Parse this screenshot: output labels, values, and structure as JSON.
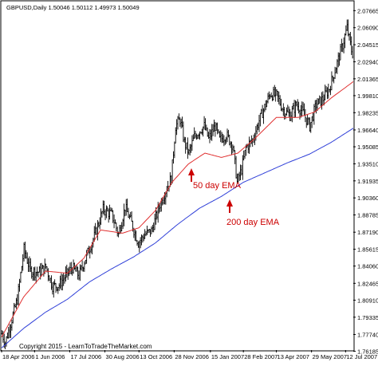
{
  "chart_data": {
    "type": "line",
    "title": "GBPUSD,Daily  1.50046 1.50112 1.49973 1.50049",
    "xlabel": "",
    "ylabel": "",
    "ylim": [
      1.763,
      2.085
    ],
    "y_ticks": [
      "2.07665",
      "2.06090",
      "2.04515",
      "2.02940",
      "2.01365",
      "1.99810",
      "1.98235",
      "1.96640",
      "1.95085",
      "1.93510",
      "1.91935",
      "1.90360",
      "1.88785",
      "1.87190",
      "1.85615",
      "1.84060",
      "1.82465",
      "1.80910",
      "1.79335",
      "1.77740",
      "1.76185"
    ],
    "x_ticks": [
      "18 Apr 2006",
      "1 Jun 2006",
      "17 Jul 2006",
      "30 Aug 2006",
      "13 Oct 2006",
      "28 Nov 2006",
      "15 Jan 2007",
      "28 Feb 2007",
      "13 Apr 2007",
      "29 May 2007",
      "12 Jul 2007"
    ],
    "x_tick_index": [
      0,
      30,
      62,
      94,
      125,
      157,
      190,
      220,
      250,
      282,
      313
    ],
    "n_bars": 320,
    "series": [
      {
        "name": "50 day EMA",
        "color": "#e03030",
        "points": [
          [
            0,
            1.775
          ],
          [
            20,
            1.812
          ],
          [
            40,
            1.836
          ],
          [
            60,
            1.834
          ],
          [
            75,
            1.848
          ],
          [
            90,
            1.874
          ],
          [
            110,
            1.871
          ],
          [
            125,
            1.876
          ],
          [
            140,
            1.892
          ],
          [
            155,
            1.918
          ],
          [
            170,
            1.935
          ],
          [
            185,
            1.945
          ],
          [
            200,
            1.941
          ],
          [
            215,
            1.945
          ],
          [
            230,
            1.958
          ],
          [
            250,
            1.978
          ],
          [
            270,
            1.978
          ],
          [
            285,
            1.983
          ],
          [
            300,
            1.996
          ],
          [
            320,
            2.011
          ]
        ]
      },
      {
        "name": "200 day EMA",
        "color": "#3040d8",
        "points": [
          [
            0,
            1.765
          ],
          [
            20,
            1.783
          ],
          [
            40,
            1.798
          ],
          [
            60,
            1.81
          ],
          [
            80,
            1.826
          ],
          [
            100,
            1.838
          ],
          [
            120,
            1.849
          ],
          [
            140,
            1.862
          ],
          [
            160,
            1.879
          ],
          [
            180,
            1.894
          ],
          [
            200,
            1.905
          ],
          [
            220,
            1.918
          ],
          [
            240,
            1.927
          ],
          [
            260,
            1.936
          ],
          [
            280,
            1.944
          ],
          [
            300,
            1.955
          ],
          [
            320,
            1.968
          ]
        ]
      }
    ],
    "price_anchors": [
      [
        0,
        1.778
      ],
      [
        3,
        1.77
      ],
      [
        8,
        1.788
      ],
      [
        14,
        1.81
      ],
      [
        20,
        1.856
      ],
      [
        26,
        1.836
      ],
      [
        34,
        1.835
      ],
      [
        40,
        1.84
      ],
      [
        46,
        1.822
      ],
      [
        52,
        1.823
      ],
      [
        58,
        1.832
      ],
      [
        64,
        1.839
      ],
      [
        70,
        1.832
      ],
      [
        78,
        1.853
      ],
      [
        84,
        1.868
      ],
      [
        92,
        1.893
      ],
      [
        100,
        1.888
      ],
      [
        106,
        1.87
      ],
      [
        112,
        1.895
      ],
      [
        118,
        1.88
      ],
      [
        124,
        1.862
      ],
      [
        130,
        1.87
      ],
      [
        136,
        1.873
      ],
      [
        144,
        1.898
      ],
      [
        150,
        1.913
      ],
      [
        154,
        1.922
      ],
      [
        158,
        1.97
      ],
      [
        162,
        1.976
      ],
      [
        166,
        1.955
      ],
      [
        170,
        1.945
      ],
      [
        175,
        1.96
      ],
      [
        180,
        1.966
      ],
      [
        184,
        1.97
      ],
      [
        188,
        1.958
      ],
      [
        194,
        1.97
      ],
      [
        198,
        1.957
      ],
      [
        204,
        1.962
      ],
      [
        210,
        1.952
      ],
      [
        214,
        1.918
      ],
      [
        218,
        1.93
      ],
      [
        222,
        1.95
      ],
      [
        228,
        1.957
      ],
      [
        234,
        1.975
      ],
      [
        240,
        1.99
      ],
      [
        244,
        2.0
      ],
      [
        250,
        1.998
      ],
      [
        256,
        1.985
      ],
      [
        262,
        1.98
      ],
      [
        268,
        1.99
      ],
      [
        274,
        1.982
      ],
      [
        280,
        1.97
      ],
      [
        286,
        1.99
      ],
      [
        292,
        1.995
      ],
      [
        298,
        2.005
      ],
      [
        304,
        2.025
      ],
      [
        310,
        2.045
      ],
      [
        314,
        2.061
      ],
      [
        318,
        2.04
      ],
      [
        320,
        2.035
      ]
    ],
    "annotations": [
      {
        "text": "50 day EMA",
        "color": "#cc0000"
      },
      {
        "text": "200 day EMA",
        "color": "#cc0000"
      }
    ],
    "copyright": "Copyright 2015 - LearnToTradeTheMarket.com",
    "grid": false,
    "legend": "none"
  }
}
